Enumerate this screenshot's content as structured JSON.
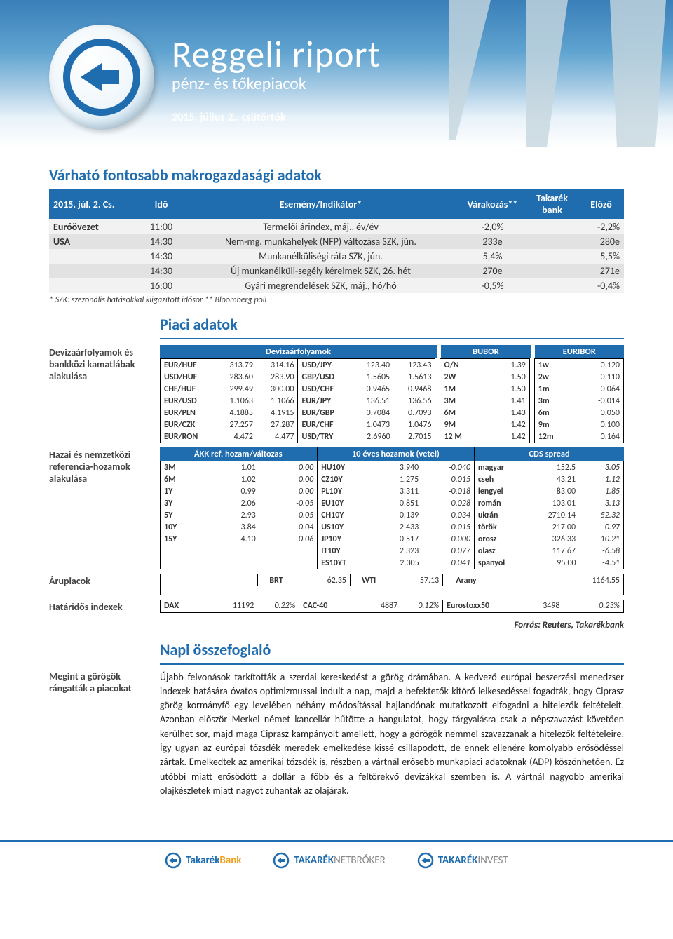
{
  "header": {
    "title": "Reggeli riport",
    "subtitle": "pénz- és tőkepiacok",
    "date": "2015. július 2., csütörtök"
  },
  "macro": {
    "title": "Várható fontosabb makrogazdasági adatok",
    "columns": {
      "date": "2015. júl. 2. Cs.",
      "time": "Idő",
      "event": "Esemény/Indikátor*",
      "expect": "Várakozás**",
      "bank": "Takarék bank",
      "prev": "Előző"
    },
    "rows": [
      {
        "region": "Euróövezet",
        "time": "11:00",
        "event": "Termelői árindex, máj., év/év",
        "expect": "-2,0%",
        "bank": "",
        "prev": "-2,2%",
        "band": 0
      },
      {
        "region": "USA",
        "time": "14:30",
        "event": "Nem-mg. munkahelyek (NFP) változása SZK, jún.",
        "expect": "233e",
        "bank": "",
        "prev": "280e",
        "band": 1
      },
      {
        "region": "",
        "time": "14:30",
        "event": "Munkanélküliségi ráta SZK, jún.",
        "expect": "5,4%",
        "bank": "",
        "prev": "5,5%",
        "band": 0
      },
      {
        "region": "",
        "time": "14:30",
        "event": "Új munkanélküli-segély kérelmek SZK, 26. hét",
        "expect": "270e",
        "bank": "",
        "prev": "271e",
        "band": 1
      },
      {
        "region": "",
        "time": "16:00",
        "event": "Gyári megrendelések SZK, máj., hó/hó",
        "expect": "-0,5%",
        "bank": "",
        "prev": "-0,4%",
        "band": 0
      }
    ],
    "footnote": "* SZK: szezonális hatásokkal kiigazított idősor        ** Bloomberg poll"
  },
  "market": {
    "title": "Piaci adatok",
    "labels": {
      "fx": "Devizaárfolyamok és bankközi kamatlábak alakulása",
      "yields": "Hazai és nemzetközi referencia-hozamok alakulása",
      "comm": "Árupiacok",
      "idx": "Határidős indexek"
    },
    "headers": {
      "fx": "Devizaárfolyamok",
      "bubor": "BUBOR",
      "euribor": "EURIBOR",
      "akk": "ÁKK ref. hozam/változas",
      "y10": "10 éves hozamok (vetel)",
      "cds": "CDS spread"
    },
    "fx_left": [
      {
        "pair": "EUR/HUF",
        "v1": "313.79",
        "v2": "314.16"
      },
      {
        "pair": "USD/HUF",
        "v1": "283.60",
        "v2": "283.90"
      },
      {
        "pair": "CHF/HUF",
        "v1": "299.49",
        "v2": "300.00"
      },
      {
        "pair": "EUR/USD",
        "v1": "1.1063",
        "v2": "1.1066"
      },
      {
        "pair": "EUR/PLN",
        "v1": "4.1885",
        "v2": "4.1915"
      },
      {
        "pair": "EUR/CZK",
        "v1": "27.257",
        "v2": "27.287"
      },
      {
        "pair": "EUR/RON",
        "v1": "4.472",
        "v2": "4.477"
      }
    ],
    "fx_mid": [
      {
        "pair": "USD/JPY",
        "v1": "123.40",
        "v2": "123.43"
      },
      {
        "pair": "GBP/USD",
        "v1": "1.5605",
        "v2": "1.5613"
      },
      {
        "pair": "USD/CHF",
        "v1": "0.9465",
        "v2": "0.9468"
      },
      {
        "pair": "EUR/JPY",
        "v1": "136.51",
        "v2": "136.56"
      },
      {
        "pair": "EUR/GBP",
        "v1": "0.7084",
        "v2": "0.7093"
      },
      {
        "pair": "EUR/CHF",
        "v1": "1.0473",
        "v2": "1.0476"
      },
      {
        "pair": "USD/TRY",
        "v1": "2.6960",
        "v2": "2.7015"
      }
    ],
    "bubor": [
      {
        "t": "O/N",
        "v": "1.39"
      },
      {
        "t": "2W",
        "v": "1.50"
      },
      {
        "t": "1M",
        "v": "1.50"
      },
      {
        "t": "3M",
        "v": "1.41"
      },
      {
        "t": "6M",
        "v": "1.43"
      },
      {
        "t": "9M",
        "v": "1.42"
      },
      {
        "t": "12 M",
        "v": "1.42"
      }
    ],
    "euribor": [
      {
        "t": "1w",
        "v": "-0.120"
      },
      {
        "t": "2w",
        "v": "-0.110"
      },
      {
        "t": "1m",
        "v": "-0.064"
      },
      {
        "t": "3m",
        "v": "-0.014"
      },
      {
        "t": "6m",
        "v": "0.050"
      },
      {
        "t": "9m",
        "v": "0.100"
      },
      {
        "t": "12m",
        "v": "0.164"
      }
    ],
    "akk": [
      {
        "t": "3M",
        "v": "1.01",
        "d": "0.00"
      },
      {
        "t": "6M",
        "v": "1.02",
        "d": "0.00"
      },
      {
        "t": "1Y",
        "v": "0.99",
        "d": "0.00"
      },
      {
        "t": "3Y",
        "v": "2.06",
        "d": "-0.05"
      },
      {
        "t": "5Y",
        "v": "2.93",
        "d": "-0.05"
      },
      {
        "t": "10Y",
        "v": "3.84",
        "d": "-0.04"
      },
      {
        "t": "15Y",
        "v": "4.10",
        "d": "-0.06"
      }
    ],
    "y10": [
      {
        "t": "HU10Y",
        "v": "3.940",
        "d": "-0.040"
      },
      {
        "t": "CZ10Y",
        "v": "1.275",
        "d": "0.015"
      },
      {
        "t": "PL10Y",
        "v": "3.311",
        "d": "-0.018"
      },
      {
        "t": "EU10Y",
        "v": "0.851",
        "d": "0.028"
      },
      {
        "t": "CH10Y",
        "v": "0.139",
        "d": "0.034"
      },
      {
        "t": "US10Y",
        "v": "2.433",
        "d": "0.015"
      },
      {
        "t": "JP10Y",
        "v": "0.517",
        "d": "0.000"
      },
      {
        "t": "IT10Y",
        "v": "2.323",
        "d": "0.077"
      },
      {
        "t": "ES10YT",
        "v": "2.305",
        "d": "0.041"
      }
    ],
    "cds": [
      {
        "t": "magyar",
        "v": "152.5",
        "d": "3.05"
      },
      {
        "t": "cseh",
        "v": "43.21",
        "d": "1.12"
      },
      {
        "t": "lengyel",
        "v": "83.00",
        "d": "1.85"
      },
      {
        "t": "román",
        "v": "103.01",
        "d": "3.13"
      },
      {
        "t": "ukrán",
        "v": "2710.14",
        "d": "-52.32"
      },
      {
        "t": "török",
        "v": "217.00",
        "d": "-0.97"
      },
      {
        "t": "orosz",
        "v": "326.33",
        "d": "-10.21"
      },
      {
        "t": "olasz",
        "v": "117.67",
        "d": "-6.58"
      },
      {
        "t": "spanyol",
        "v": "95.00",
        "d": "-4.51"
      }
    ],
    "commodities": [
      {
        "name": "BRT",
        "v": "62.35"
      },
      {
        "name": "WTI",
        "v": "57.13"
      },
      {
        "name": "Arany",
        "v": "1164.55"
      }
    ],
    "indexes": [
      {
        "name": "DAX",
        "v": "11192",
        "d": "0.22%"
      },
      {
        "name": "CAC-40",
        "v": "4887",
        "d": "0.12%"
      },
      {
        "name": "Eurostoxx50",
        "v": "3498",
        "d": "0.23%"
      }
    ],
    "source": "Forrás: Reuters, Takarékbank"
  },
  "summary": {
    "title": "Napi összefoglaló",
    "label": "Megint a görögök rángatták a piacokat",
    "body": "Újabb felvonások tarkították a szerdai kereskedést a görög drámában. A kedvező európai beszerzési menedzser indexek hatására óvatos optimizmussal indult a nap, majd a befektetők kitörő lelkesedéssel fogadták, hogy Ciprasz görög kormányfő egy levelében néhány módosítással hajlandónak mutatkozott elfogadni a hitelezők feltételeit. Azonban először Merkel német kancellár hűtötte a hangulatot, hogy tárgyalásra csak a népszavazást követően kerülhet sor, majd maga Ciprasz kampányolt amellett, hogy a görögök nemmel szavazzanak a hitelezők feltételeire. Így ugyan az európai tőzsdék meredek emelkedése kissé csillapodott, de ennek ellenére komolyabb erősödéssel zártak. Emelkedtek az amerikai tőzsdék is, részben a vártnál erősebb munkapiaci adatoknak (ADP) köszönhetően. Ez utóbbi miatt erősödött a dollár a főbb és a feltörekvő devizákkal szemben is. A vártnál nagyobb amerikai olajkészletek miatt nagyot zuhantak az olajárak."
  },
  "footer": {
    "b1a": "Takarék",
    "b1b": "Bank",
    "b2a": "TAKARÉK",
    "b2b": "NETBRÓKER",
    "b3a": "TAKARÉK",
    "b3b": "INVEST"
  },
  "colors": {
    "brand": "#1f6cae"
  }
}
